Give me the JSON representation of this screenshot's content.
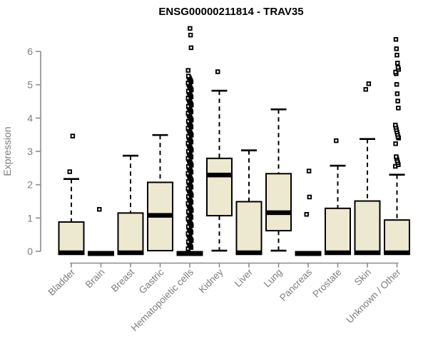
{
  "chart_data": {
    "type": "boxplot",
    "title": "ENSG00000211814 - TRAV35",
    "ylabel": "Expression",
    "xlabel": "",
    "ylim": [
      0,
      6.8
    ],
    "yticks": [
      0,
      1,
      2,
      3,
      4,
      5,
      6
    ],
    "grid": false,
    "legend": "none",
    "categories": [
      "Bladder",
      "Brain",
      "Breast",
      "Gastric",
      "Hematopoietic cells",
      "Kidney",
      "Liver",
      "Lung",
      "Pancreas",
      "Prostate",
      "Skin",
      "Unknown / Other"
    ],
    "boxes": [
      {
        "category": "Bladder",
        "whisker_low": 0,
        "q1": 0,
        "median": 0.03,
        "q3": 0.88,
        "whisker_high": 2.17,
        "outliers": [
          2.39,
          3.46
        ]
      },
      {
        "category": "Brain",
        "whisker_low": 0,
        "q1": 0,
        "median": 0,
        "q3": 0,
        "whisker_high": 0,
        "outliers": [
          1.26
        ]
      },
      {
        "category": "Breast",
        "whisker_low": 0,
        "q1": 0,
        "median": 0.03,
        "q3": 1.15,
        "whisker_high": 2.87,
        "outliers": []
      },
      {
        "category": "Gastric",
        "whisker_low": 0,
        "q1": 0.02,
        "median": 1.08,
        "q3": 2.07,
        "whisker_high": 3.49,
        "outliers": []
      },
      {
        "category": "Hematopoietic cells",
        "whisker_low": 0,
        "q1": 0,
        "median": 0,
        "q3": 0,
        "whisker_high": 0,
        "outliers": [
          5.43,
          6.11,
          6.49,
          6.69
        ],
        "outlier_column": {
          "min": 0.08,
          "max": 5.26,
          "approx_count": 150
        }
      },
      {
        "category": "Kidney",
        "whisker_low": 0.02,
        "q1": 1.07,
        "median": 2.29,
        "q3": 2.79,
        "whisker_high": 4.82,
        "outliers": [
          5.39
        ]
      },
      {
        "category": "Liver",
        "whisker_low": 0,
        "q1": 0,
        "median": 0.05,
        "q3": 1.49,
        "whisker_high": 3.03,
        "outliers": []
      },
      {
        "category": "Lung",
        "whisker_low": 0.02,
        "q1": 0.62,
        "median": 1.16,
        "q3": 2.33,
        "whisker_high": 4.26,
        "outliers": []
      },
      {
        "category": "Pancreas",
        "whisker_low": 0,
        "q1": 0,
        "median": 0,
        "q3": 0,
        "whisker_high": 0,
        "outliers": [
          1.11,
          1.63,
          2.41
        ]
      },
      {
        "category": "Prostate",
        "whisker_low": 0,
        "q1": 0,
        "median": 0.03,
        "q3": 1.29,
        "whisker_high": 2.57,
        "outliers": [
          3.32
        ]
      },
      {
        "category": "Skin",
        "whisker_low": 0,
        "q1": 0,
        "median": 0.03,
        "q3": 1.51,
        "whisker_high": 3.37,
        "outliers": [
          4.86,
          5.03
        ]
      },
      {
        "category": "Unknown / Other",
        "whisker_low": 0,
        "q1": 0,
        "median": 0.03,
        "q3": 0.94,
        "whisker_high": 2.3,
        "outliers": [
          2.55,
          2.6,
          2.66,
          2.72,
          2.79,
          2.84,
          3.23,
          3.4,
          3.44,
          3.51,
          3.58,
          3.65,
          3.72,
          3.79,
          4.3,
          4.51,
          4.73,
          5.01,
          5.33,
          5.38,
          5.46,
          5.52,
          5.65,
          5.89,
          6.08,
          6.36
        ]
      }
    ],
    "style": {
      "box_fill": "#EDE8D0",
      "box_border": "#000000",
      "median_color": "#000000",
      "whisker_color": "#000000",
      "outlier_color": "#000000",
      "axis_color": "#8C8C8C",
      "label_color": "#7D7D7D",
      "title_color": "#000000",
      "background": "#FFFFFF"
    }
  }
}
